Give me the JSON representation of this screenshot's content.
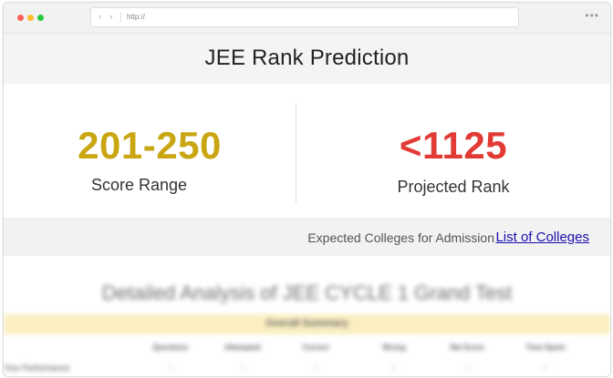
{
  "browser": {
    "url": "http://",
    "back_arrow": "‹",
    "forward_arrow": "›",
    "menu": "•••"
  },
  "header": {
    "title": "JEE Rank Prediction"
  },
  "score": {
    "value": "201-250",
    "label": "Score Range"
  },
  "rank": {
    "value": "<1125",
    "label": "Projected Rank"
  },
  "colleges": {
    "text": "Expected Colleges for Admission",
    "link": "List of Colleges"
  },
  "analysis": {
    "title": "Detailed Analysis of  JEE CYCLE 1 Grand Test",
    "summary_title": "Overall Summary",
    "columns": [
      "Questions",
      "Attempted",
      "Correct",
      "Wrong",
      "Net Score",
      "Time Spent"
    ],
    "row_label": "Your Performance",
    "row_values": [
      "--",
      "--",
      "--",
      "--",
      "--",
      "--"
    ]
  },
  "colors": {
    "score_accent": "#c9a612",
    "rank_accent": "#e23b36",
    "link": "#1a0dab",
    "summary_bar": "#fbeec0"
  }
}
